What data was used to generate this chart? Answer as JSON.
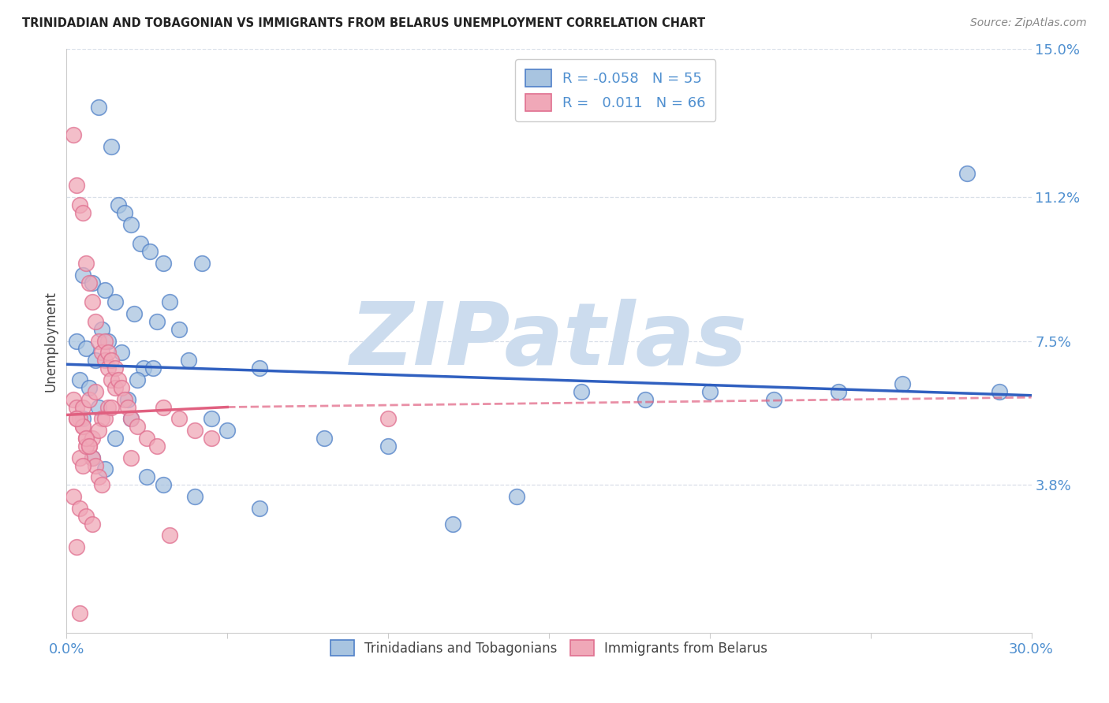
{
  "title": "TRINIDADIAN AND TOBAGONIAN VS IMMIGRANTS FROM BELARUS UNEMPLOYMENT CORRELATION CHART",
  "source": "Source: ZipAtlas.com",
  "ylabel_label": "Unemployment",
  "yticks": [
    0.0,
    3.8,
    7.5,
    11.2,
    15.0
  ],
  "xlim": [
    0.0,
    30.0
  ],
  "ylim": [
    0.0,
    15.0
  ],
  "color_blue": "#a8c4e0",
  "color_pink": "#f0a8b8",
  "color_blue_edge": "#5080c8",
  "color_pink_edge": "#e07090",
  "color_blue_line": "#3060c0",
  "color_pink_line": "#e06080",
  "color_axis_ticks": "#5090d0",
  "watermark_text": "ZIPatlas",
  "watermark_color": "#ccdcee",
  "blue_x": [
    1.0,
    1.4,
    1.6,
    1.8,
    2.0,
    2.3,
    2.6,
    3.0,
    0.5,
    0.8,
    1.2,
    1.5,
    2.1,
    2.8,
    3.5,
    4.2,
    0.3,
    0.6,
    0.9,
    1.1,
    1.7,
    2.4,
    3.2,
    0.4,
    1.3,
    2.2,
    3.8,
    0.7,
    1.9,
    2.7,
    4.5,
    5.0,
    6.0,
    8.0,
    10.0,
    12.0,
    14.0,
    16.0,
    18.0,
    20.0,
    22.0,
    24.0,
    26.0,
    28.0,
    29.0,
    1.0,
    0.5,
    1.5,
    2.0,
    0.8,
    1.2,
    2.5,
    3.0,
    4.0,
    6.0
  ],
  "blue_y": [
    13.5,
    12.5,
    11.0,
    10.8,
    10.5,
    10.0,
    9.8,
    9.5,
    9.2,
    9.0,
    8.8,
    8.5,
    8.2,
    8.0,
    7.8,
    9.5,
    7.5,
    7.3,
    7.0,
    7.8,
    7.2,
    6.8,
    8.5,
    6.5,
    7.5,
    6.5,
    7.0,
    6.3,
    6.0,
    6.8,
    5.5,
    5.2,
    6.8,
    5.0,
    4.8,
    2.8,
    3.5,
    6.2,
    6.0,
    6.2,
    6.0,
    6.2,
    6.4,
    11.8,
    6.2,
    5.8,
    5.5,
    5.0,
    5.5,
    4.5,
    4.2,
    4.0,
    3.8,
    3.5,
    3.2
  ],
  "pink_x": [
    0.2,
    0.3,
    0.4,
    0.5,
    0.6,
    0.7,
    0.8,
    0.9,
    1.0,
    1.1,
    1.2,
    1.3,
    1.4,
    1.5,
    0.2,
    0.3,
    0.4,
    0.5,
    0.6,
    0.7,
    0.8,
    0.9,
    1.0,
    1.1,
    1.2,
    1.3,
    1.4,
    1.5,
    1.6,
    1.7,
    1.8,
    1.9,
    2.0,
    2.2,
    2.5,
    2.8,
    3.0,
    3.5,
    4.0,
    4.5,
    0.3,
    0.5,
    0.7,
    0.9,
    1.1,
    1.3,
    0.4,
    0.6,
    0.8,
    1.0,
    1.2,
    1.4,
    0.2,
    0.4,
    0.6,
    0.8,
    3.2,
    0.3,
    10.0,
    0.5,
    0.6,
    0.7,
    2.0,
    0.4,
    0.5,
    0.3
  ],
  "pink_y": [
    12.8,
    11.5,
    11.0,
    10.8,
    9.5,
    9.0,
    8.5,
    8.0,
    7.5,
    7.2,
    7.0,
    6.8,
    6.5,
    6.3,
    6.0,
    5.8,
    5.5,
    5.3,
    5.0,
    4.8,
    4.5,
    4.3,
    4.0,
    3.8,
    7.5,
    7.2,
    7.0,
    6.8,
    6.5,
    6.3,
    6.0,
    5.8,
    5.5,
    5.3,
    5.0,
    4.8,
    5.8,
    5.5,
    5.2,
    5.0,
    5.5,
    5.8,
    6.0,
    6.2,
    5.5,
    5.8,
    4.5,
    4.8,
    5.0,
    5.2,
    5.5,
    5.8,
    3.5,
    3.2,
    3.0,
    2.8,
    2.5,
    2.2,
    5.5,
    5.3,
    5.0,
    4.8,
    4.5,
    0.5,
    4.3,
    5.5
  ],
  "gridline_color": "#d8dfe8",
  "background_color": "#ffffff",
  "blue_trend_x0": 0.0,
  "blue_trend_y0": 6.9,
  "blue_trend_x1": 30.0,
  "blue_trend_y1": 6.1,
  "pink_solid_x0": 0.0,
  "pink_solid_y0": 5.6,
  "pink_solid_x1": 5.0,
  "pink_solid_y1": 5.8,
  "pink_dash_x0": 5.0,
  "pink_dash_y0": 5.8,
  "pink_dash_x1": 30.0,
  "pink_dash_y1": 6.05
}
